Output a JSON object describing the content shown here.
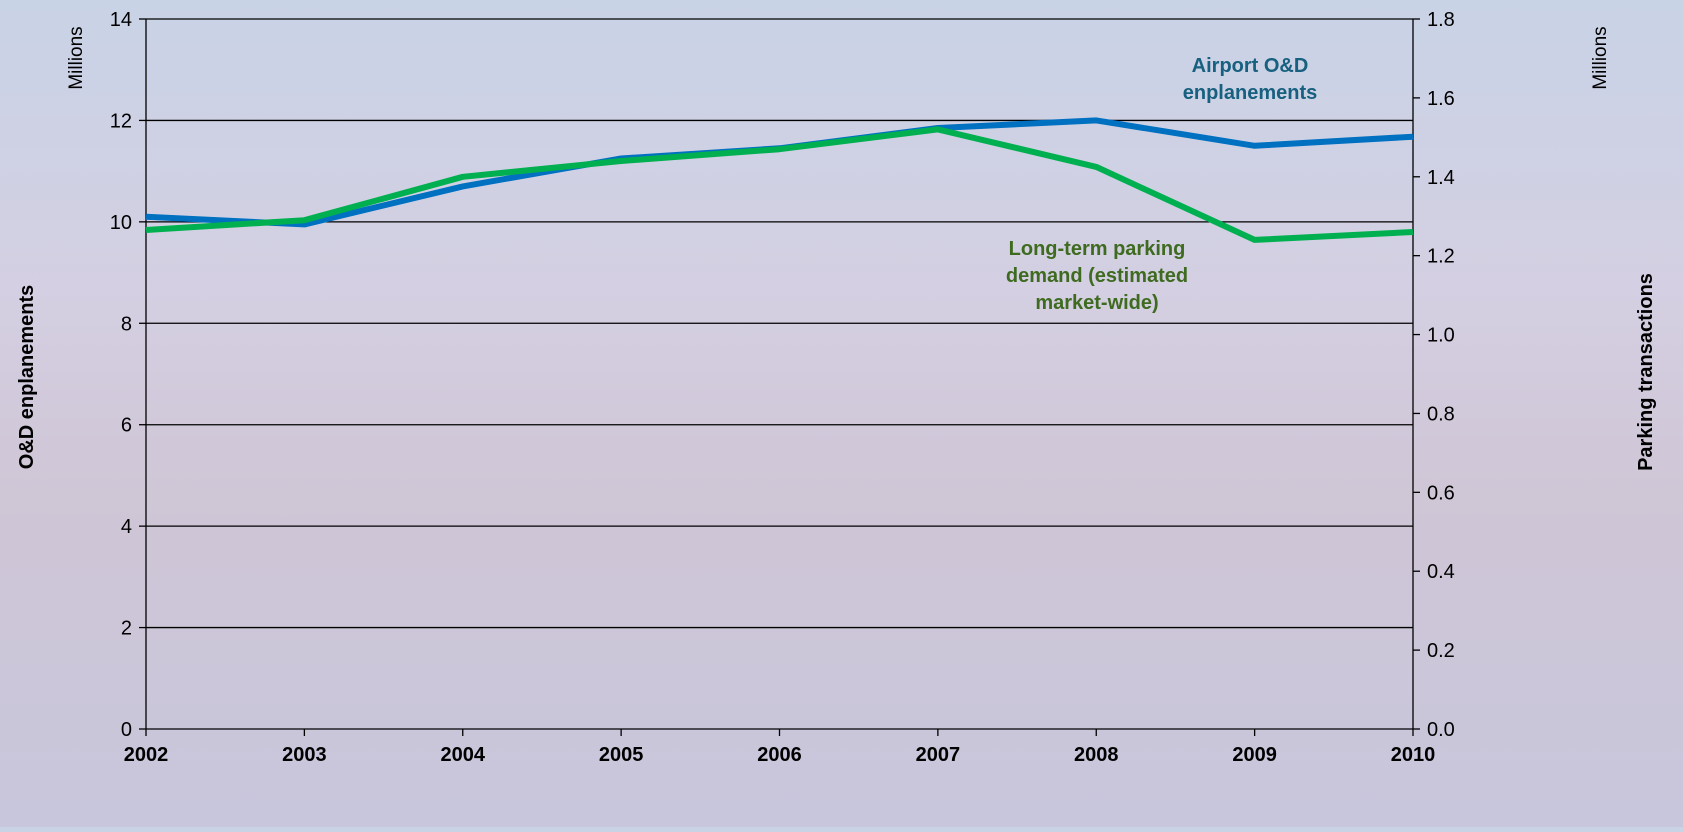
{
  "chart_data": {
    "type": "line",
    "x": [
      "2002",
      "2003",
      "2004",
      "2005",
      "2006",
      "2007",
      "2008",
      "2009",
      "2010"
    ],
    "series": [
      {
        "name": "Airport O&D enplanements",
        "axis": "left",
        "color": "#0070c0",
        "values": [
          10.1,
          9.95,
          10.7,
          11.25,
          11.45,
          11.85,
          12.0,
          11.5,
          11.68
        ]
      },
      {
        "name": "Long-term parking demand (estimated market-wide)",
        "axis": "right",
        "color": "#00b050",
        "values": [
          1.265,
          1.29,
          1.4,
          1.44,
          1.47,
          1.52,
          1.425,
          1.24,
          1.26
        ]
      }
    ],
    "left_axis": {
      "label": "O&D enplanements",
      "unit": "Millions",
      "ylim": [
        0,
        14
      ],
      "ticks": [
        "0",
        "2",
        "4",
        "6",
        "8",
        "10",
        "12",
        "14"
      ]
    },
    "right_axis": {
      "label": "Parking transactions",
      "unit": "Millions",
      "ylim": [
        0,
        1.8
      ],
      "ticks": [
        "0.0",
        "0.2",
        "0.4",
        "0.6",
        "0.8",
        "1.0",
        "1.2",
        "1.4",
        "1.6",
        "1.8"
      ]
    },
    "annotations": [
      {
        "lines": [
          "Airport O&D",
          "enplanements"
        ],
        "color": "#17607f"
      },
      {
        "lines": [
          "Long-term parking",
          "demand (estimated",
          "market-wide)"
        ],
        "color": "#3e6b20"
      }
    ],
    "grid": true,
    "legend": "none"
  }
}
